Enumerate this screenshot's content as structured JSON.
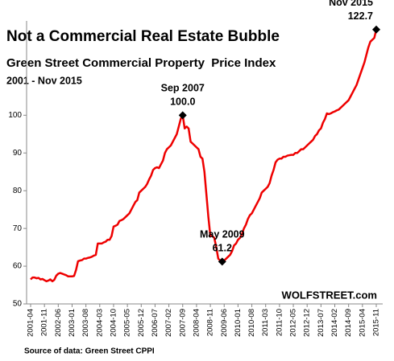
{
  "chart_data": {
    "type": "line",
    "title": "Not a Commercial Real Estate Bubble",
    "subtitle": "Green Street Commercial Property  Price Index",
    "period": "2001 - Nov 2015",
    "source": "Source of data: Green Street CPPI",
    "watermark": "WOLFSTREET.com",
    "color": "#ee0000",
    "ylim": [
      50,
      125
    ],
    "yticks": [
      50,
      60,
      70,
      80,
      90,
      100
    ],
    "categories": [
      "2001-04",
      null,
      null,
      null,
      null,
      null,
      null,
      "2001-11",
      null,
      null,
      null,
      null,
      null,
      null,
      "2002-06",
      null,
      null,
      null,
      null,
      null,
      null,
      "2003-01",
      null,
      null,
      null,
      null,
      null,
      null,
      "2003-08",
      null,
      null,
      null,
      null,
      null,
      null,
      "2004-03",
      null,
      null,
      null,
      null,
      null,
      null,
      "2004-10",
      null,
      null,
      null,
      null,
      null,
      null,
      "2005-05",
      null,
      null,
      null,
      null,
      null,
      null,
      "2005-12",
      null,
      null,
      null,
      null,
      null,
      null,
      "2006-07",
      null,
      null,
      null,
      null,
      null,
      null,
      "2007-02",
      null,
      null,
      null,
      null,
      null,
      null,
      "2007-09",
      null,
      null,
      null,
      null,
      null,
      null,
      "2008-04",
      null,
      null,
      null,
      null,
      null,
      null,
      "2008-11",
      null,
      null,
      null,
      null,
      null,
      null,
      "2009-06",
      null,
      null,
      null,
      null,
      null,
      null,
      "2010-01",
      null,
      null,
      null,
      null,
      null,
      null,
      "2010-08",
      null,
      null,
      null,
      null,
      null,
      null,
      "2011-03",
      null,
      null,
      null,
      null,
      null,
      null,
      "2011-10",
      null,
      null,
      null,
      null,
      null,
      null,
      "2012-05",
      null,
      null,
      null,
      null,
      null,
      null,
      "2012-12",
      null,
      null,
      null,
      null,
      null,
      null,
      "2013-07",
      null,
      null,
      null,
      null,
      null,
      null,
      "2014-02",
      null,
      null,
      null,
      null,
      null,
      null,
      "2014-09",
      null,
      null,
      null,
      null,
      null,
      null,
      "2015-04",
      null,
      null,
      null,
      null,
      null,
      null,
      "2015-11"
    ],
    "values": [
      56.5,
      57,
      57,
      56.8,
      56.9,
      56.5,
      56.6,
      56.3,
      56,
      56.2,
      56.5,
      56,
      56.4,
      57.5,
      58,
      58.2,
      58,
      57.8,
      57.6,
      57.3,
      57.3,
      57.3,
      57.4,
      59,
      61.3,
      61.5,
      61.6,
      62,
      62,
      62.2,
      62.3,
      62.5,
      62.8,
      63,
      66,
      66,
      66,
      66.3,
      66.5,
      67,
      67,
      68,
      70.5,
      70.7,
      71,
      72,
      72.2,
      72.5,
      73,
      73.5,
      74,
      75,
      76,
      77,
      77.5,
      79.5,
      80,
      80.5,
      81,
      81.8,
      83,
      84,
      85.5,
      86,
      86.2,
      86,
      87,
      88,
      90,
      91,
      91.5,
      92,
      93,
      94,
      95,
      97,
      99,
      100,
      96.5,
      97,
      96.5,
      93,
      92.5,
      92,
      91.5,
      91,
      89,
      88.5,
      85,
      79,
      73,
      68,
      68,
      67.5,
      65,
      62,
      61.5,
      61.2,
      61.5,
      62,
      62.5,
      63,
      64,
      65.5,
      66,
      67,
      67.5,
      68.5,
      70,
      71,
      72.5,
      73.5,
      74,
      75,
      76,
      77,
      78,
      79.5,
      80,
      80.5,
      81,
      82,
      84,
      85.5,
      87.5,
      88.2,
      88.5,
      88.5,
      89,
      89,
      89.3,
      89.4,
      89.5,
      89.5,
      90,
      90,
      90.5,
      91,
      91,
      91.5,
      92,
      92.5,
      93,
      93.5,
      94.5,
      95,
      96,
      96.5,
      98,
      99,
      100.5,
      100.3,
      100.5,
      100.8,
      101,
      101.3,
      101.5,
      102,
      102.5,
      103,
      103.5,
      104,
      105,
      106,
      107,
      108,
      109.5,
      111,
      112.5,
      114,
      116,
      118,
      119.5,
      120,
      120.5,
      122.7
    ],
    "annotations": [
      {
        "text": "Sep 2007",
        "value_label": "100.0"
      },
      {
        "text": "May 2009",
        "value_label": "61.2"
      },
      {
        "text": "Nov 2015",
        "value_label": "122.7"
      }
    ]
  }
}
